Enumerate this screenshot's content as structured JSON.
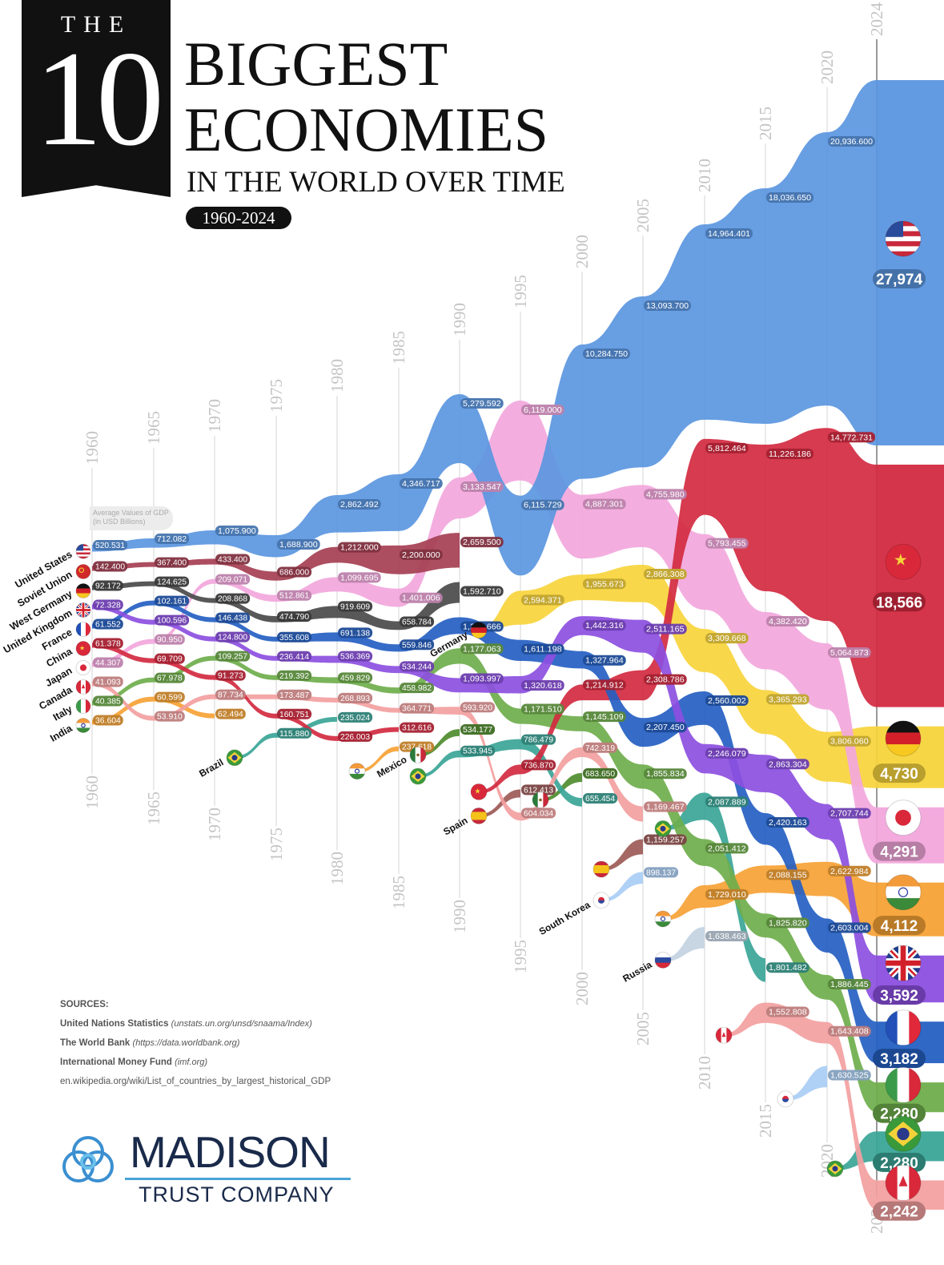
{
  "header": {
    "the": "THE",
    "number": "10",
    "line1": "BIGGEST",
    "line2": "ECONOMIES",
    "line3": "IN THE WORLD OVER TIME",
    "range": "1960-2024"
  },
  "note": {
    "line1": "Average Values of GDP",
    "line2": "(in USD Billions)"
  },
  "sources": {
    "title": "SOURCES:",
    "items": [
      {
        "name": "United Nations Statistics",
        "url": "(unstats.un.org/unsd/snaama/Index)"
      },
      {
        "name": "The World Bank",
        "url": "(https://data.worldbank.org)"
      },
      {
        "name": "International Money Fund",
        "url": "(imf.org)"
      },
      {
        "name": "",
        "url": "en.wikipedia.org/wiki/List_of_countries_by_largest_historical_GDP"
      }
    ]
  },
  "logo": {
    "name": "MADISON",
    "sub": "TRUST COMPANY"
  },
  "chart_data": {
    "type": "bump-area",
    "title": "The 10 Biggest Economies in the World Over Time",
    "unit": "USD Billions",
    "years": [
      1960,
      1965,
      1970,
      1975,
      1980,
      1985,
      1990,
      1995,
      2000,
      2005,
      2010,
      2015,
      2020,
      2024
    ],
    "series": [
      {
        "key": "us",
        "name": "United States",
        "color": "#5b96e0",
        "label_start": true,
        "values": {
          "1960": 520.531,
          "1965": 712.082,
          "1970": 1075.9,
          "1975": 1688.9,
          "1980": 2862.492,
          "1985": 4346.717,
          "1990": 5279.592,
          "1995": 6115.729,
          "2000": 10284.75,
          "2005": 13093.7,
          "2010": 14964.401,
          "2015": 18036.65,
          "2020": 20936.6,
          "2024": 27974
        }
      },
      {
        "key": "su",
        "name": "Soviet Union",
        "color": "#a53f52",
        "label_start": true,
        "values": {
          "1960": 142.4,
          "1965": 367.4,
          "1970": 433.4,
          "1975": 686.0,
          "1980": 1212.0,
          "1985": 2200.0,
          "1990": 2659.5
        }
      },
      {
        "key": "wg",
        "name": "West Germany",
        "color": "#4a4a4a",
        "label_start": true,
        "values": {
          "1960": 92.172,
          "1965": 124.625,
          "1970": 208.868,
          "1975": 474.79,
          "1980": 919.609,
          "1985": 658.784,
          "1990": 1592.71
        }
      },
      {
        "key": "uk",
        "name": "United Kingdom",
        "color": "#8c4fe0",
        "label_start": true,
        "values": {
          "1960": 72.328,
          "1965": 100.596,
          "1970": 124.8,
          "1975": 236.414,
          "1980": 536.369,
          "1985": 534.244,
          "1990": 1093.997,
          "1995": 1320.618,
          "2000": 1442.316,
          "2005": 2511.165,
          "2010": 2246.079,
          "2015": 2863.304,
          "2020": 2707.744,
          "2024": 3592
        }
      },
      {
        "key": "fr",
        "name": "France",
        "color": "#2560c2",
        "label_start": true,
        "values": {
          "1960": 61.552,
          "1965": 102.161,
          "1970": 146.438,
          "1975": 355.608,
          "1980": 691.138,
          "1985": 559.846,
          "1990": 1278.666,
          "1995": 1611.198,
          "2000": 1327.964,
          "2005": 2207.45,
          "2010": 2560.002,
          "2015": 2420.163,
          "2020": 2603.004,
          "2024": 3182
        }
      },
      {
        "key": "cn",
        "name": "China",
        "color": "#d32a40",
        "label_start": true,
        "values": {
          "1960": 61.378,
          "1965": 69.709,
          "1970": 91.273,
          "1975": 160.751,
          "1980": 226.003,
          "1985": 312.616,
          "1995": 736.87,
          "2000": 1214.912,
          "2005": 2308.786,
          "2010": 5812.464,
          "2015": 11226.186,
          "2020": 14772.731,
          "2024": 18566
        }
      },
      {
        "key": "jp",
        "name": "Japan",
        "color": "#f2a7dc",
        "label_start": true,
        "values": {
          "1960": 44.307,
          "1965": 90.95,
          "1970": 209.071,
          "1975": 512.861,
          "1980": 1099.695,
          "1985": 1401.006,
          "1990": 3133.547,
          "1995": 6119.0,
          "2000": 4887.301,
          "2005": 4755.98,
          "2010": 5793.455,
          "2015": 4382.42,
          "2020": 5064.873,
          "2024": 4291
        }
      },
      {
        "key": "ca",
        "name": "Canada",
        "color": "#f3a0a0",
        "label_start": true,
        "values": {
          "1960": 41.093,
          "1965": 53.91,
          "1970": 87.734,
          "1975": 173.487,
          "1980": 268.893,
          "1985": 364.771,
          "1990": 593.92,
          "1995": 604.034,
          "2000": 742.319,
          "2005": 1169.467,
          "2015": 1552.808,
          "2020": 1643.408,
          "2024": 2242
        }
      },
      {
        "key": "it",
        "name": "Italy",
        "color": "#6fae4c",
        "label_start": true,
        "values": {
          "1960": 40.385,
          "1965": 67.978,
          "1970": 109.257,
          "1975": 219.392,
          "1980": 459.829,
          "1985": 458.982,
          "1990": 1177.063,
          "1995": 1171.51,
          "2000": 1145.109,
          "2005": 1855.834,
          "2010": 2051.412,
          "2015": 1825.82,
          "2020": 1886.445,
          "2024": 2280
        }
      },
      {
        "key": "in",
        "name": "India",
        "color": "#f6a235",
        "label_start": true,
        "values": {
          "1960": 36.604,
          "1965": 60.599,
          "1970": 62.494,
          "1985": 237.618,
          "2010": 1729.01,
          "2015": 2088.155,
          "2020": 2622.984,
          "2024": 4112
        }
      },
      {
        "key": "br",
        "name": "Brazil",
        "color": "#3aa597",
        "label_start": false,
        "values": {
          "1975": 115.88,
          "1980": 235.024,
          "1990": 533.945,
          "1995": 786.479,
          "2000": 655.454,
          "2010": 2087.889,
          "2015": 1801.482,
          "2024": 2280
        }
      },
      {
        "key": "mx",
        "name": "Mexico",
        "color": "#4e8c2c",
        "label_start": false,
        "values": {
          "1990": 534.177,
          "2000": 683.65
        }
      },
      {
        "key": "es",
        "name": "Spain",
        "color": "#9c5a56",
        "label_start": false,
        "values": {
          "1995": 612.413,
          "2005": 1159.257
        }
      },
      {
        "key": "de",
        "name": "Germany",
        "color": "#f7d43c",
        "label_start": false,
        "values": {
          "1995": 2594.371,
          "2000": 1955.673,
          "2005": 2866.308,
          "2010": 3309.668,
          "2015": 3365.293,
          "2020": 3806.06,
          "2024": 4730
        }
      },
      {
        "key": "kr",
        "name": "South Korea",
        "color": "#a9cdf5",
        "label_start": false,
        "values": {
          "2005": 898.137,
          "2020": 1630.525
        }
      },
      {
        "key": "ru",
        "name": "Russia",
        "color": "#c3d2e2",
        "label_start": false,
        "values": {
          "2010": 1638.463
        }
      }
    ]
  }
}
